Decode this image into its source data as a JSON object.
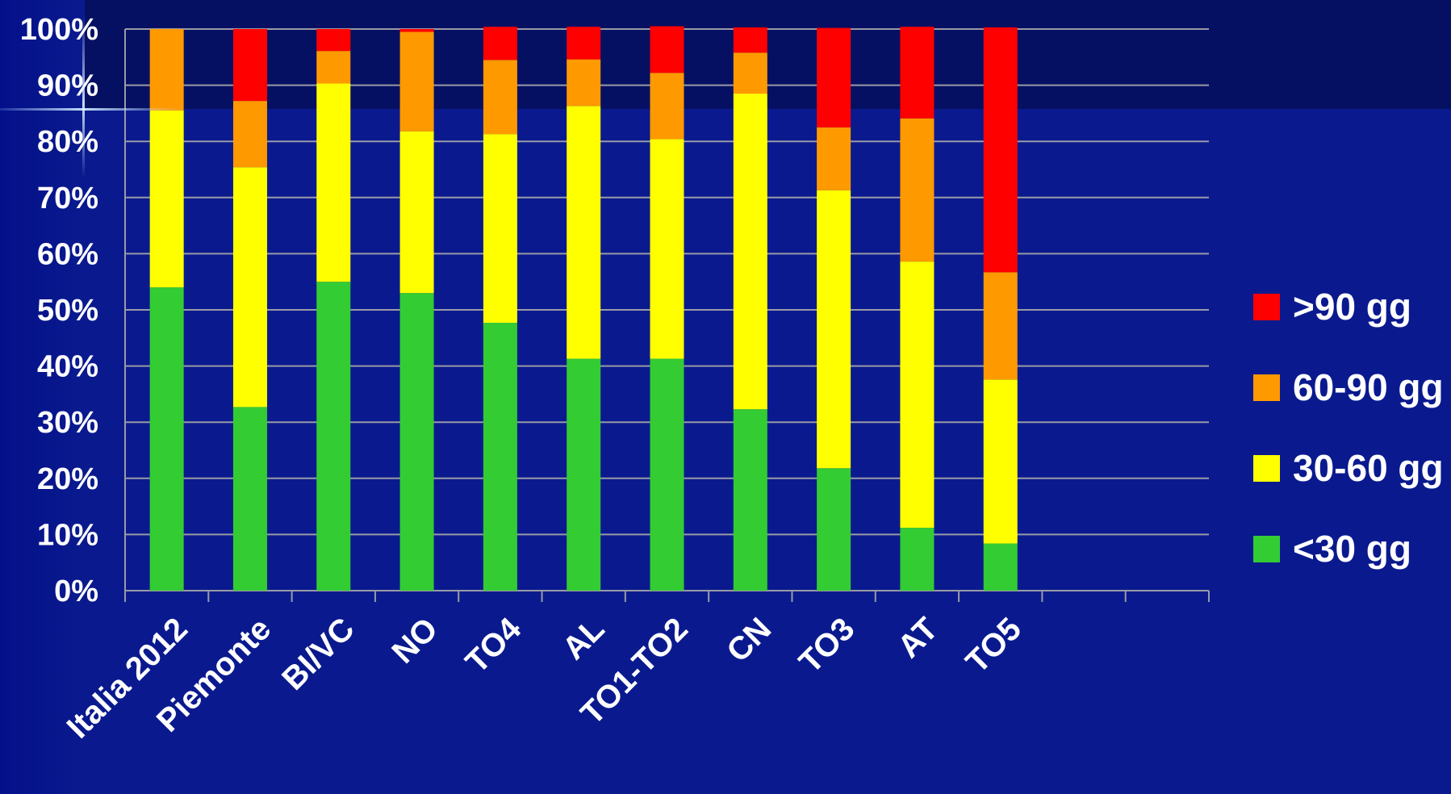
{
  "chart_data": {
    "type": "bar",
    "stacked": true,
    "normalized_100_percent": true,
    "categories": [
      "Italia 2012",
      "Piemonte",
      "BI/VC",
      "NO",
      "TO4",
      "AL",
      "TO1-TO2",
      "CN",
      "TO3",
      "AT",
      "TO5"
    ],
    "series": [
      {
        "name": "<30 gg",
        "color": "#33cc33",
        "values": [
          54,
          32.7,
          55,
          53,
          47.7,
          41.3,
          41.3,
          32.3,
          21.8,
          11.2,
          8.4
        ]
      },
      {
        "name": "30-60 gg",
        "color": "#ffff00",
        "values": [
          31.5,
          42.7,
          35.3,
          28.8,
          33.6,
          45,
          39.1,
          56.2,
          49.5,
          47.4,
          29.2
        ]
      },
      {
        "name": "60-90 gg",
        "color": "#ff9900",
        "values": [
          14.5,
          11.8,
          5.8,
          17.7,
          13.2,
          8.3,
          11.8,
          7.3,
          11.2,
          25.5,
          19.1
        ]
      },
      {
        "name": ">90 gg",
        "color": "#ff0000",
        "values": [
          0,
          12.8,
          3.9,
          0.5,
          5.9,
          5.8,
          8.3,
          4.5,
          17.7,
          16.3,
          43.6
        ]
      }
    ],
    "legend_order": [
      ">90 gg",
      "60-90 gg",
      "30-60 gg",
      "<30 gg"
    ],
    "legend_position": "right",
    "y_ticks": [
      "0%",
      "10%",
      "20%",
      "30%",
      "40%",
      "50%",
      "60%",
      "70%",
      "80%",
      "90%",
      "100%"
    ],
    "ylim": [
      0,
      100
    ],
    "extra_empty_slots": 2,
    "grid": true,
    "title": "",
    "xlabel": "",
    "ylabel": ""
  }
}
